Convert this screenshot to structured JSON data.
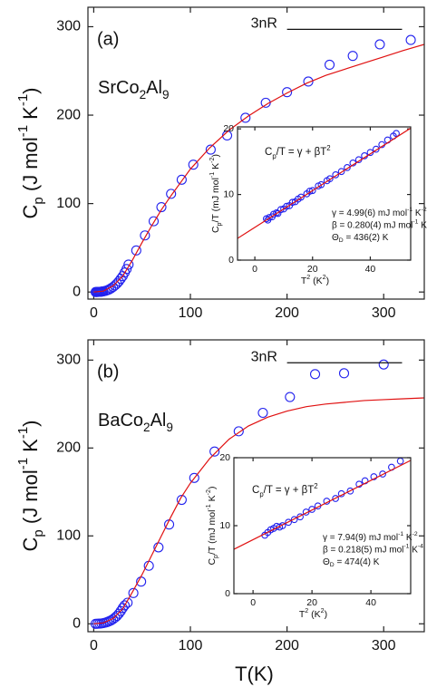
{
  "chart_data": [
    {
      "type": "scatter",
      "xlim": [
        -6,
        342
      ],
      "ylim": [
        -8,
        322
      ],
      "xticks": [
        0,
        100,
        200,
        300
      ],
      "yticks": [
        0,
        100,
        200,
        300
      ],
      "panel_label": "(a)",
      "compound": [
        "SrCo",
        "2",
        "Al",
        "9"
      ],
      "limit": {
        "label": "3nR",
        "value": 297,
        "x": [
          200,
          319
        ]
      },
      "ylabel": [
        "C",
        "p",
        " (J mol",
        "-1",
        " K",
        "-1",
        ")"
      ],
      "series": [
        {
          "style": "markers",
          "color": "#2222ee",
          "x": [
            2,
            3,
            4,
            5,
            6,
            7,
            8,
            9,
            10,
            12,
            14,
            16,
            18,
            20,
            22,
            24,
            26,
            28,
            30,
            32,
            34,
            36,
            44,
            53,
            62,
            70,
            80,
            91,
            103,
            121,
            138,
            157,
            178,
            200,
            222,
            244,
            268,
            296,
            328
          ],
          "values": [
            0,
            0,
            0.1,
            0.1,
            0.2,
            0.3,
            0.4,
            0.6,
            0.8,
            1.3,
            2,
            3,
            4.2,
            5.7,
            7.5,
            9.6,
            12,
            15,
            18,
            22,
            26,
            31,
            47,
            64,
            80,
            96,
            111,
            127,
            144,
            161,
            177,
            197,
            214,
            226,
            238,
            257,
            267,
            280,
            285
          ]
        },
        {
          "style": "line",
          "color": "#e01010",
          "x": [
            0,
            10,
            20,
            30,
            40,
            50,
            60,
            70,
            80,
            90,
            100,
            120,
            140,
            160,
            180,
            200,
            220,
            240,
            260,
            280,
            300,
            320,
            342
          ],
          "values": [
            0,
            1,
            7,
            18,
            36,
            56,
            75,
            93,
            109,
            124,
            139,
            163,
            183,
            199,
            213,
            225,
            236,
            245,
            252,
            259,
            266,
            273,
            280
          ]
        }
      ]
    },
    {
      "type": "scatter",
      "xlim": [
        -6,
        54
      ],
      "ylim": [
        0,
        20.3
      ],
      "xticks": [
        0,
        20,
        40
      ],
      "yticks": [
        0,
        10,
        20
      ],
      "formula": [
        "C",
        "p",
        "/T = γ + βT",
        "2"
      ],
      "parameters": [
        [
          "γ = 4.99(6) mJ mol",
          "-1",
          " K",
          "-2"
        ],
        [
          "β = 0.280(4) mJ mol",
          "-1",
          " K",
          "-4"
        ],
        [
          "Θ",
          "D",
          " = 436(2) K"
        ]
      ],
      "ylabel": [
        "C",
        "p",
        "/T (mJ mol",
        "-1",
        " K",
        "-2",
        ")"
      ],
      "xlabel": [
        "T",
        "2",
        " (K",
        "2",
        ")"
      ],
      "series": [
        {
          "style": "markers",
          "color": "#2222ee",
          "x": [
            4,
            4.5,
            5,
            6,
            6.5,
            7.5,
            8,
            9,
            10,
            11,
            12,
            13,
            14,
            15,
            16,
            18,
            19,
            20,
            22,
            23,
            25,
            26,
            28,
            30,
            32,
            34,
            36,
            38,
            40,
            42,
            44,
            46,
            48,
            49
          ],
          "values": [
            6.3,
            6.1,
            6.5,
            6.6,
            7.0,
            7.2,
            7.1,
            7.7,
            7.8,
            8.2,
            8.3,
            8.8,
            8.9,
            9.3,
            9.6,
            10.1,
            10.5,
            10.6,
            11.3,
            11.5,
            12.1,
            12.4,
            13.0,
            13.5,
            14.1,
            14.8,
            15.3,
            15.9,
            16.4,
            16.9,
            17.6,
            18.3,
            18.9,
            19.3
          ]
        },
        {
          "style": "line",
          "color": "#e01010",
          "x": [
            -6,
            54
          ],
          "values": [
            3.31,
            20.11
          ]
        }
      ]
    },
    {
      "type": "scatter",
      "xlim": [
        -6,
        342
      ],
      "ylim": [
        -9,
        323
      ],
      "xticks": [
        0,
        100,
        200,
        300
      ],
      "yticks": [
        0,
        100,
        200,
        300
      ],
      "panel_label": "(b)",
      "compound": [
        "BaCo",
        "2",
        "Al",
        "9"
      ],
      "limit": {
        "label": "3nR",
        "value": 297,
        "x": [
          200,
          319
        ]
      },
      "ylabel": [
        "C",
        "p",
        " (J mol",
        "-1",
        " K",
        "-1",
        ")"
      ],
      "xlabel": "T(K)",
      "series": [
        {
          "style": "markers",
          "color": "#2222ee",
          "x": [
            2,
            4,
            6,
            8,
            10,
            12,
            14,
            16,
            18,
            20,
            22,
            24,
            26,
            28,
            30,
            32,
            35,
            41,
            49,
            57,
            67,
            78,
            91,
            104,
            125,
            150,
            175,
            203,
            229,
            259,
            300
          ],
          "values": [
            0,
            0.1,
            0.2,
            0.4,
            0.8,
            1.3,
            2,
            2.9,
            4,
            5.3,
            7,
            9,
            11.5,
            14.5,
            18,
            21,
            24,
            35,
            48,
            66,
            87,
            113,
            141,
            166,
            196,
            219,
            240,
            258,
            284,
            285,
            295
          ]
        },
        {
          "style": "line",
          "color": "#e01010",
          "x": [
            0,
            10,
            20,
            30,
            40,
            50,
            60,
            70,
            80,
            90,
            100,
            120,
            140,
            160,
            180,
            200,
            220,
            240,
            260,
            280,
            300,
            320,
            342
          ],
          "values": [
            0,
            1,
            6,
            17,
            36,
            56,
            78,
            100,
            122,
            143,
            160,
            188,
            210,
            225,
            235,
            242,
            247,
            250,
            252,
            254,
            255,
            256,
            257
          ]
        }
      ]
    },
    {
      "type": "scatter",
      "xlim": [
        -6.5,
        53.5
      ],
      "ylim": [
        0,
        20
      ],
      "xticks": [
        0,
        20,
        40
      ],
      "yticks": [
        0,
        10,
        20
      ],
      "formula": [
        "C",
        "p",
        "/T = γ + βT",
        "2"
      ],
      "parameters": [
        [
          "γ = 7.94(9) mJ mol",
          "-1",
          " K",
          "-2"
        ],
        [
          "β = 0.218(5) mJ mol",
          "-1",
          " K",
          "-4"
        ],
        [
          "Θ",
          "D",
          " = 474(4) K"
        ]
      ],
      "ylabel": [
        "C",
        "p",
        "/T (mJ mol",
        "-1",
        " K",
        "-2",
        ")"
      ],
      "xlabel": [
        "T",
        "2",
        " (K",
        "2",
        ")"
      ],
      "series": [
        {
          "style": "markers",
          "color": "#2222ee",
          "x": [
            4,
            5,
            6,
            7,
            8,
            9,
            10,
            12,
            14,
            16,
            18,
            20,
            22,
            25,
            28,
            30,
            33,
            36,
            38,
            41,
            44,
            47,
            50
          ],
          "values": [
            8.6,
            9.0,
            9.4,
            9.6,
            9.9,
            9.8,
            10.0,
            10.5,
            10.9,
            11.3,
            12.0,
            12.4,
            12.9,
            13.6,
            14.0,
            14.7,
            15.1,
            16.1,
            16.6,
            17.2,
            17.6,
            18.6,
            19.5
          ]
        },
        {
          "style": "line",
          "color": "#e01010",
          "x": [
            -6.5,
            53.5
          ],
          "values": [
            6.52,
            19.6
          ]
        }
      ]
    }
  ]
}
